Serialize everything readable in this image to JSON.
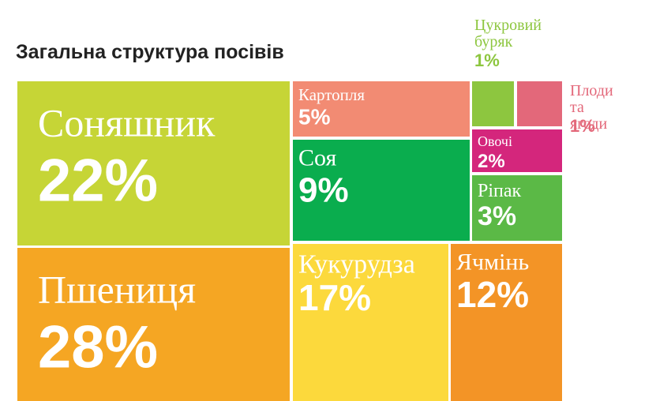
{
  "chart_data": {
    "type": "treemap",
    "title": "Загальна структура посівів",
    "categories": [
      "Соняшник",
      "Пшениця",
      "Картопля",
      "Соя",
      "Кукурудза",
      "Ячмінь",
      "Цукровий буряк",
      "Плоди та ягоди",
      "Овочі",
      "Ріпак"
    ],
    "values": [
      22,
      28,
      5,
      9,
      17,
      12,
      1,
      1,
      2,
      3
    ],
    "value_labels": [
      "22%",
      "28%",
      "5%",
      "9%",
      "17%",
      "12%",
      "1%",
      "1%",
      "2%",
      "3%"
    ],
    "colors": [
      "#c6d536",
      "#f5a623",
      "#f28b73",
      "#0aad4e",
      "#fcd93c",
      "#f39426",
      "#8dc63f",
      "#e3687a",
      "#d4267c",
      "#5bb946"
    ]
  }
}
